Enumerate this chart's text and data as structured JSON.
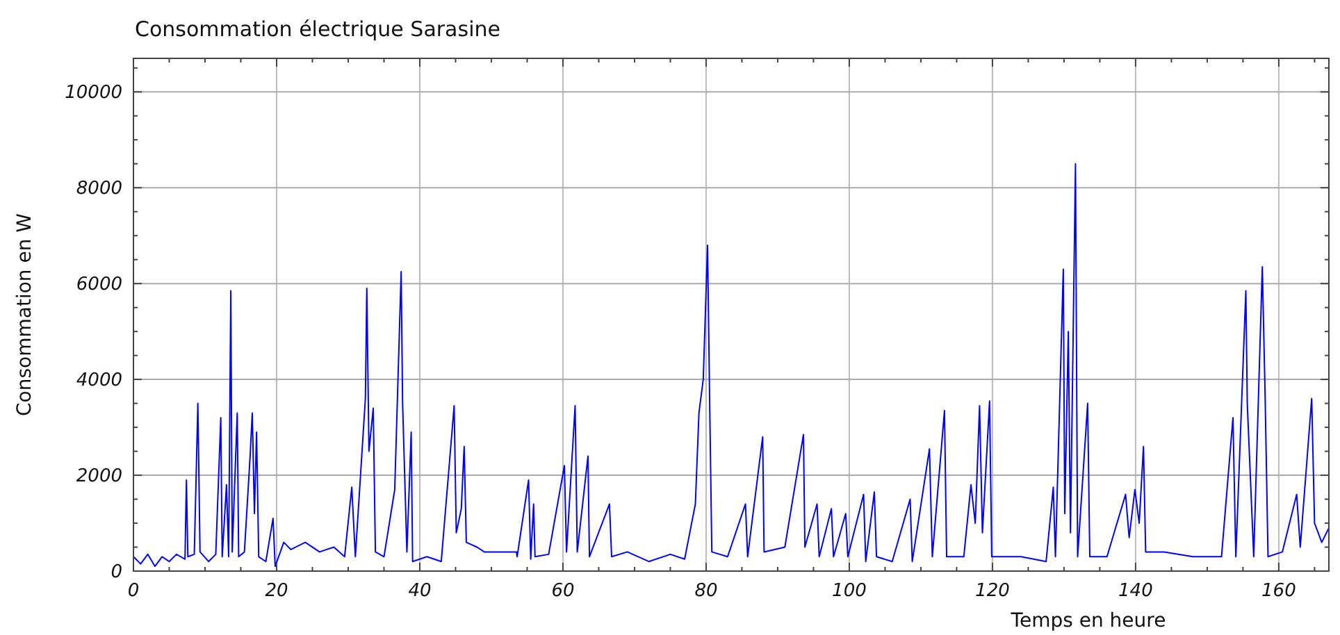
{
  "chart_data": {
    "type": "line",
    "title": "Consommation électrique Sarasine",
    "xlabel": "Temps en heure",
    "ylabel": "Consommation en W",
    "xlim": [
      0,
      167
    ],
    "ylim": [
      0,
      10700
    ],
    "xticks": [
      0,
      {
        "value": 5,
        "label": null
      },
      {
        "value": 10,
        "label": null
      },
      {
        "value": 15,
        "label": null
      },
      20,
      {
        "value": 25,
        "label": null
      },
      {
        "value": 30,
        "label": null
      },
      {
        "value": 35,
        "label": null
      },
      40,
      {
        "value": 45,
        "label": null
      },
      {
        "value": 50,
        "label": null
      },
      {
        "value": 55,
        "label": null
      },
      60,
      {
        "value": 65,
        "label": null
      },
      {
        "value": 70,
        "label": null
      },
      {
        "value": 75,
        "label": null
      },
      80,
      {
        "value": 85,
        "label": null
      },
      {
        "value": 90,
        "label": null
      },
      {
        "value": 95,
        "label": null
      },
      100,
      {
        "value": 105,
        "label": null
      },
      {
        "value": 110,
        "label": null
      },
      {
        "value": 115,
        "label": null
      },
      120,
      {
        "value": 125,
        "label": null
      },
      {
        "value": 130,
        "label": null
      },
      {
        "value": 135,
        "label": null
      },
      140,
      {
        "value": 145,
        "label": null
      },
      {
        "value": 150,
        "label": null
      },
      {
        "value": 155,
        "label": null
      },
      160,
      {
        "value": 165,
        "label": null
      }
    ],
    "yticks": [
      0,
      {
        "value": 500,
        "label": null
      },
      {
        "value": 1000,
        "label": null
      },
      {
        "value": 1500,
        "label": null
      },
      2000,
      {
        "value": 2500,
        "label": null
      },
      {
        "value": 3000,
        "label": null
      },
      {
        "value": 3500,
        "label": null
      },
      4000,
      {
        "value": 4500,
        "label": null
      },
      {
        "value": 5000,
        "label": null
      },
      {
        "value": 5500,
        "label": null
      },
      6000,
      {
        "value": 6500,
        "label": null
      },
      {
        "value": 7000,
        "label": null
      },
      {
        "value": 7500,
        "label": null
      },
      8000,
      {
        "value": 8500,
        "label": null
      },
      {
        "value": 9000,
        "label": null
      },
      {
        "value": 9500,
        "label": null
      },
      10000,
      {
        "value": 10500,
        "label": null
      }
    ],
    "grid": true,
    "marker": "none",
    "line_style": "solid",
    "series": [
      {
        "color": "#0000ff",
        "x": [
          0,
          1,
          2,
          3,
          4,
          5,
          6,
          7.2,
          7.4,
          7.6,
          8.5,
          9.0,
          9.3,
          10.5,
          11.5,
          12.2,
          12.4,
          13.0,
          13.3,
          13.6,
          13.8,
          14.5,
          14.7,
          15.5,
          16.3,
          16.6,
          16.9,
          17.2,
          17.5,
          18.5,
          19.5,
          19.8,
          21,
          22,
          24,
          26,
          28,
          29.5,
          30.5,
          31,
          32.4,
          32.6,
          32.9,
          33.5,
          33.8,
          35,
          36.5,
          37.4,
          37.6,
          38.2,
          38.8,
          39,
          41,
          43,
          44.8,
          45.1,
          45.8,
          46.2,
          46.5,
          48,
          49,
          53.5,
          53.6,
          55.2,
          55.5,
          55.9,
          56.1,
          58,
          60.2,
          60.5,
          61.7,
          62,
          63.5,
          63.7,
          66.5,
          66.8,
          69,
          72,
          75,
          77,
          78.5,
          79,
          79.6,
          80.2,
          80.5,
          80.8,
          83,
          85.5,
          85.8,
          87.9,
          88.1,
          91,
          93.6,
          93.8,
          95.5,
          95.8,
          97.5,
          97.8,
          99.5,
          99.8,
          102,
          102.3,
          103.5,
          103.8,
          106,
          108.5,
          108.8,
          111.2,
          111.6,
          113.3,
          113.6,
          116,
          117,
          117.6,
          118.2,
          118.6,
          119.6,
          119.9,
          124,
          127.5,
          128.5,
          128.8,
          129.9,
          130.1,
          130.6,
          130.9,
          131.6,
          131.9,
          133.3,
          133.6,
          136,
          138.6,
          139.1,
          139.9,
          140.5,
          141.1,
          141.4,
          144,
          148,
          152,
          153.6,
          154,
          155.4,
          155.6,
          156.5,
          157.7,
          158.1,
          158.5,
          160.5,
          162.5,
          163,
          164.6,
          165,
          166,
          167
        ],
        "values": [
          300,
          150,
          350,
          100,
          300,
          200,
          350,
          250,
          1900,
          300,
          350,
          3500,
          400,
          200,
          350,
          3200,
          300,
          1800,
          300,
          5850,
          400,
          3300,
          300,
          400,
          2400,
          3300,
          1200,
          2900,
          300,
          200,
          1100,
          100,
          600,
          450,
          600,
          400,
          500,
          300,
          1750,
          300,
          3600,
          5900,
          2500,
          3400,
          400,
          300,
          1700,
          6250,
          3500,
          400,
          2900,
          200,
          300,
          200,
          3450,
          800,
          1300,
          2600,
          600,
          500,
          400,
          400,
          300,
          1900,
          250,
          1400,
          300,
          350,
          2200,
          400,
          3450,
          400,
          2400,
          300,
          1400,
          300,
          400,
          200,
          350,
          250,
          1400,
          3300,
          4000,
          6800,
          3500,
          400,
          300,
          1400,
          300,
          2800,
          400,
          500,
          2850,
          500,
          1400,
          300,
          1300,
          300,
          1200,
          300,
          1600,
          200,
          1650,
          300,
          200,
          1500,
          200,
          2550,
          300,
          3350,
          300,
          300,
          1800,
          1000,
          3450,
          800,
          3550,
          300,
          300,
          200,
          1750,
          300,
          6300,
          1200,
          5000,
          800,
          8500,
          300,
          3500,
          300,
          300,
          1600,
          700,
          1700,
          1000,
          2600,
          400,
          400,
          300,
          300,
          3200,
          300,
          5850,
          3500,
          300,
          6350,
          3600,
          300,
          400,
          1600,
          500,
          3600,
          1000,
          600,
          900
        ]
      }
    ]
  }
}
